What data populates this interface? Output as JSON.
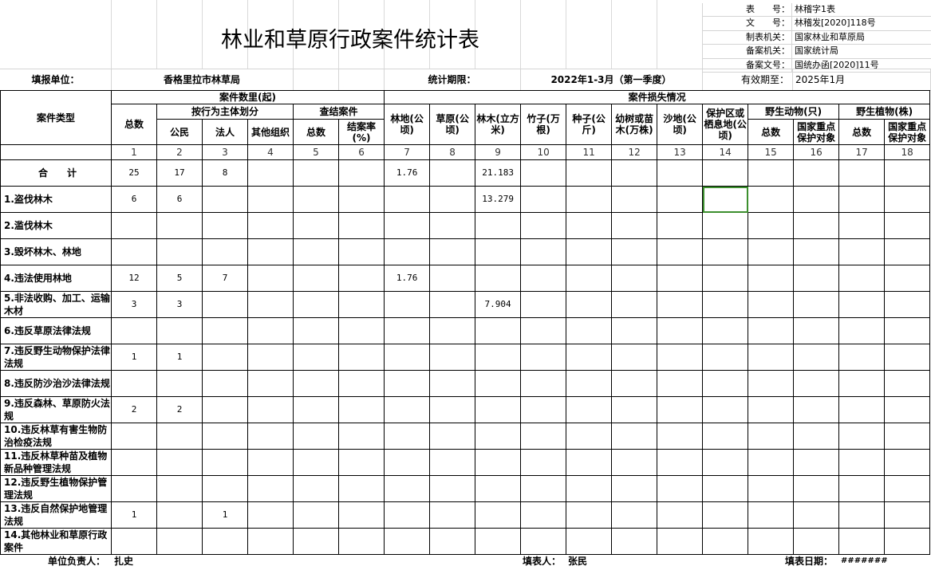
{
  "title": "林业和草原行政案件统计表",
  "info": [
    {
      "label": "表　　号：",
      "value": "林稽字1表"
    },
    {
      "label": "文　　号：",
      "value": "林稽发[2020]118号"
    },
    {
      "label": "制表机关：",
      "value": "国家林业和草原局"
    },
    {
      "label": "备案机关：",
      "value": "国家统计局"
    },
    {
      "label": "备案文号：",
      "value": "国统办函[2020]11号"
    }
  ],
  "meta": {
    "unit_label": "填报单位：",
    "unit_value": "香格里拉市林草局",
    "period_label": "统计期限：",
    "period_value": "2022年1-3月（第一季度）",
    "valid_label": "有效期至：",
    "valid_value": "2025年1月"
  },
  "header": {
    "case_type": "案件类型",
    "case_count": "案件数里(起)",
    "case_loss": "案件损失情况",
    "total": "总数",
    "by_subject": "按行为主体划分",
    "closed": "查结案件",
    "citizen": "公民",
    "legal": "法人",
    "other_org": "其他组织",
    "closed_total": "总数",
    "close_rate": "结案率(%)",
    "forest_land": "林地(公顷)",
    "grassland": "草原(公顷)",
    "timber": "林木(立方米)",
    "bamboo": "竹子(万根)",
    "seeds": "种子(公斤)",
    "saplings": "幼树或苗木(万株)",
    "sand": "沙地(公顷)",
    "reserve": "保护区或栖息地(公顷)",
    "wild_animals": "野生动物(只)",
    "wild_plants": "野生植物(株)",
    "wa_total": "总数",
    "wa_key": "国家重点保护对象",
    "wp_total": "总数",
    "wp_key": "国家重点保护对象",
    "col_numbers": [
      "1",
      "2",
      "3",
      "4",
      "5",
      "6",
      "7",
      "8",
      "9",
      "10",
      "11",
      "12",
      "13",
      "14",
      "15",
      "16",
      "17",
      "18"
    ]
  },
  "rows": [
    {
      "label": "合　　计",
      "values": [
        "25",
        "17",
        "8",
        "",
        "",
        "",
        "1.76",
        "",
        "21.183",
        "",
        "",
        "",
        "",
        "",
        "",
        "",
        "",
        ""
      ]
    },
    {
      "label": "1.盗伐林木",
      "values": [
        "6",
        "6",
        "",
        "",
        "",
        "",
        "",
        "",
        "13.279",
        "",
        "",
        "",
        "",
        "",
        "",
        "",
        "",
        ""
      ]
    },
    {
      "label": "2.滥伐林木",
      "values": [
        "",
        "",
        "",
        "",
        "",
        "",
        "",
        "",
        "",
        "",
        "",
        "",
        "",
        "",
        "",
        "",
        "",
        ""
      ]
    },
    {
      "label": "3.毁坏林木、林地",
      "values": [
        "",
        "",
        "",
        "",
        "",
        "",
        "",
        "",
        "",
        "",
        "",
        "",
        "",
        "",
        "",
        "",
        "",
        ""
      ]
    },
    {
      "label": "4.违法使用林地",
      "values": [
        "12",
        "5",
        "7",
        "",
        "",
        "",
        "1.76",
        "",
        "",
        "",
        "",
        "",
        "",
        "",
        "",
        "",
        "",
        ""
      ]
    },
    {
      "label": "5.非法收购、加工、运输木材",
      "values": [
        "3",
        "3",
        "",
        "",
        "",
        "",
        "",
        "",
        "7.904",
        "",
        "",
        "",
        "",
        "",
        "",
        "",
        "",
        ""
      ]
    },
    {
      "label": "6.违反草原法律法规",
      "values": [
        "",
        "",
        "",
        "",
        "",
        "",
        "",
        "",
        "",
        "",
        "",
        "",
        "",
        "",
        "",
        "",
        "",
        ""
      ]
    },
    {
      "label": "7.违反野生动物保护法律法规",
      "values": [
        "1",
        "1",
        "",
        "",
        "",
        "",
        "",
        "",
        "",
        "",
        "",
        "",
        "",
        "",
        "",
        "",
        "",
        ""
      ]
    },
    {
      "label": "8.违反防沙治沙法律法规",
      "values": [
        "",
        "",
        "",
        "",
        "",
        "",
        "",
        "",
        "",
        "",
        "",
        "",
        "",
        "",
        "",
        "",
        "",
        ""
      ]
    },
    {
      "label": "9.违反森林、草原防火法规",
      "values": [
        "2",
        "2",
        "",
        "",
        "",
        "",
        "",
        "",
        "",
        "",
        "",
        "",
        "",
        "",
        "",
        "",
        "",
        ""
      ]
    },
    {
      "label": "10.违反林草有害生物防治检疫法规",
      "values": [
        "",
        "",
        "",
        "",
        "",
        "",
        "",
        "",
        "",
        "",
        "",
        "",
        "",
        "",
        "",
        "",
        "",
        ""
      ]
    },
    {
      "label": "11.违反林草种苗及植物新品种管理法规",
      "values": [
        "",
        "",
        "",
        "",
        "",
        "",
        "",
        "",
        "",
        "",
        "",
        "",
        "",
        "",
        "",
        "",
        "",
        ""
      ]
    },
    {
      "label": "12.违反野生植物保护管理法规",
      "values": [
        "",
        "",
        "",
        "",
        "",
        "",
        "",
        "",
        "",
        "",
        "",
        "",
        "",
        "",
        "",
        "",
        "",
        ""
      ]
    },
    {
      "label": "13.违反自然保护地管理法规",
      "values": [
        "1",
        "",
        "1",
        "",
        "",
        "",
        "",
        "",
        "",
        "",
        "",
        "",
        "",
        "",
        "",
        "",
        "",
        ""
      ]
    },
    {
      "label": "14.其他林业和草原行政案件",
      "values": [
        "",
        "",
        "",
        "",
        "",
        "",
        "",
        "",
        "",
        "",
        "",
        "",
        "",
        "",
        "",
        "",
        "",
        ""
      ]
    }
  ],
  "footer": {
    "head_label": "单位负责人：",
    "head_value": "扎史",
    "filler_label": "填表人：",
    "filler_value": "张民",
    "date_label": "填表日期：",
    "date_value": "#######"
  },
  "selected_cell": {
    "row": 1,
    "col": 14,
    "color": "#3c8f2e"
  }
}
